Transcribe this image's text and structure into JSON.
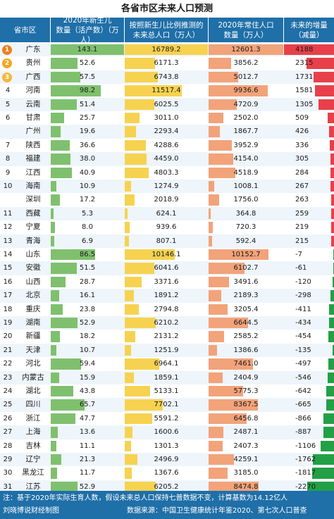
{
  "title": "各省市区未来人口预测",
  "headers": {
    "province": "省市区",
    "births": "2020年新生儿\n数量（活产数）（万人）",
    "future": "按照新生儿比例推测的\n未来总人口（万人）",
    "resident": "2020年常住人口\n数量（万人）",
    "change": "未来的增量\n（减量）"
  },
  "footer": {
    "note": "注：基于2020年实际生育人数，假设未来总人口保持七普数据不变，计算基数为14.12亿人",
    "credit": "刘晓博说财经制图",
    "source": "数据来源：中国卫生健康统计年鉴2020、第七次人口普查"
  },
  "colors": {
    "header": "#1f6fa8",
    "births_bar": "#7fc06e",
    "future_bar": "#f6d250",
    "resident_bar": "#f2a37a",
    "change_pos": "#e8404a",
    "change_neg": "#22a046",
    "row_a": "#eef5fb",
    "row_b": "#ffffff",
    "medal_1": "#f07f1f",
    "medal_2": "#f5a623",
    "medal_3": "#f6b53c"
  },
  "chart_data": {
    "type": "table",
    "columns": [
      "rank",
      "province",
      "births",
      "future_population",
      "resident_2020",
      "change"
    ],
    "rows": [
      {
        "rank": "1",
        "province": "广东",
        "births": 143.1,
        "future": 16789.2,
        "resident": 12601.3,
        "change": 4188
      },
      {
        "rank": "2",
        "province": "贵州",
        "births": 52.6,
        "future": 6171.3,
        "resident": 3856.2,
        "change": 2315
      },
      {
        "rank": "3",
        "province": "广西",
        "births": 57.5,
        "future": 6743.8,
        "resident": 5012.7,
        "change": 1731
      },
      {
        "rank": "4",
        "province": "河南",
        "births": 98.2,
        "future": 11517.4,
        "resident": 9936.6,
        "change": 1581
      },
      {
        "rank": "5",
        "province": "云南",
        "births": 51.4,
        "future": 6025.5,
        "resident": 4720.9,
        "change": 1305
      },
      {
        "rank": "6",
        "province": "甘肃",
        "births": 25.7,
        "future": 3011.0,
        "resident": 2502.0,
        "change": 509
      },
      {
        "rank": "",
        "province": "广州",
        "births": 19.6,
        "future": 2293.4,
        "resident": 1867.7,
        "change": 426
      },
      {
        "rank": "7",
        "province": "陕西",
        "births": 36.6,
        "future": 4288.6,
        "resident": 3952.9,
        "change": 336
      },
      {
        "rank": "8",
        "province": "福建",
        "births": 38.0,
        "future": 4459.0,
        "resident": 4154.0,
        "change": 305
      },
      {
        "rank": "9",
        "province": "江西",
        "births": 40.9,
        "future": 4803.3,
        "resident": 4518.9,
        "change": 284
      },
      {
        "rank": "10",
        "province": "海南",
        "births": 10.9,
        "future": 1274.9,
        "resident": 1008.1,
        "change": 267
      },
      {
        "rank": "",
        "province": "深圳",
        "births": 17.2,
        "future": 2018.9,
        "resident": 1756.0,
        "change": 263
      },
      {
        "rank": "11",
        "province": "西藏",
        "births": 5.3,
        "future": 624.1,
        "resident": 364.8,
        "change": 259
      },
      {
        "rank": "12",
        "province": "宁夏",
        "births": 8.0,
        "future": 939.6,
        "resident": 720.3,
        "change": 219
      },
      {
        "rank": "13",
        "province": "青海",
        "births": 6.9,
        "future": 807.1,
        "resident": 592.4,
        "change": 215
      },
      {
        "rank": "14",
        "province": "山东",
        "births": 86.5,
        "future": 10146.1,
        "resident": 10152.7,
        "change": -7
      },
      {
        "rank": "15",
        "province": "安徽",
        "births": 51.5,
        "future": 6041.6,
        "resident": 6102.7,
        "change": -61
      },
      {
        "rank": "16",
        "province": "山西",
        "births": 28.7,
        "future": 3371.6,
        "resident": 3491.6,
        "change": -120
      },
      {
        "rank": "17",
        "province": "北京",
        "births": 16.1,
        "future": 1891.2,
        "resident": 2189.3,
        "change": -298
      },
      {
        "rank": "18",
        "province": "重庆",
        "births": 23.8,
        "future": 2794.8,
        "resident": 3205.4,
        "change": -411
      },
      {
        "rank": "19",
        "province": "湖南",
        "births": 52.9,
        "future": 6210.2,
        "resident": 6644.5,
        "change": -434
      },
      {
        "rank": "20",
        "province": "新疆",
        "births": 18.2,
        "future": 2131.2,
        "resident": 2585.2,
        "change": -454
      },
      {
        "rank": "21",
        "province": "天津",
        "births": 10.7,
        "future": 1251.9,
        "resident": 1386.6,
        "change": -135
      },
      {
        "rank": "22",
        "province": "河北",
        "births": 59.4,
        "future": 6964.1,
        "resident": 7461.0,
        "change": -497
      },
      {
        "rank": "23",
        "province": "内蒙古",
        "births": 15.9,
        "future": 1859.1,
        "resident": 2404.9,
        "change": -546
      },
      {
        "rank": "24",
        "province": "湖北",
        "births": 43.8,
        "future": 5133.1,
        "resident": 5775.3,
        "change": -642
      },
      {
        "rank": "25",
        "province": "四川",
        "births": 65.7,
        "future": 7702.1,
        "resident": 8367.5,
        "change": -665
      },
      {
        "rank": "26",
        "province": "浙江",
        "births": 47.7,
        "future": 5591.2,
        "resident": 6456.8,
        "change": -866
      },
      {
        "rank": "27",
        "province": "上海",
        "births": 13.6,
        "future": 1600.6,
        "resident": 2487.1,
        "change": -887
      },
      {
        "rank": "28",
        "province": "吉林",
        "births": 11.1,
        "future": 1301.3,
        "resident": 2407.3,
        "change": -1106
      },
      {
        "rank": "29",
        "province": "辽宁",
        "births": 21.3,
        "future": 2496.9,
        "resident": 4259.1,
        "change": -1762
      },
      {
        "rank": "30",
        "province": "黑龙江",
        "births": 11.7,
        "future": 1367.6,
        "resident": 3185.0,
        "change": -1817
      },
      {
        "rank": "31",
        "province": "江苏",
        "births": 52.9,
        "future": 6205.2,
        "resident": 8474.8,
        "change": -2270
      }
    ],
    "scale": {
      "births_max": 143.1,
      "future_max": 16789.2,
      "resident_max": 12601.3,
      "change_max_abs": 4188
    }
  }
}
